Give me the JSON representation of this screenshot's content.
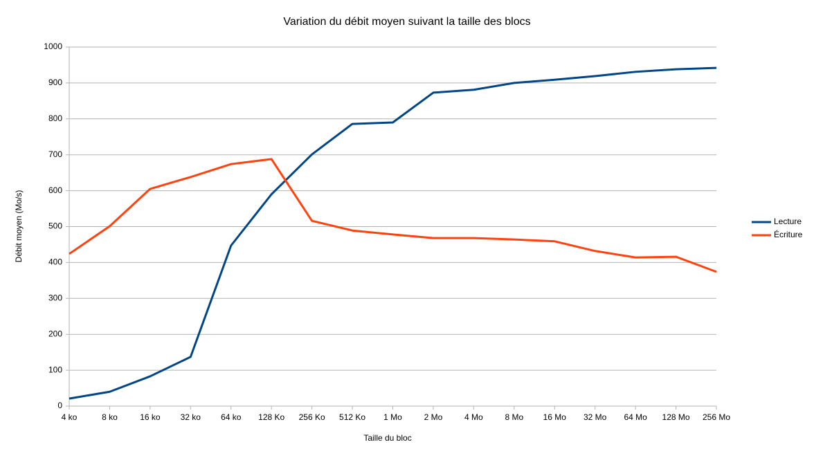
{
  "chart_data": {
    "type": "line",
    "title": "Variation du débit moyen suivant la taille des blocs",
    "x_label": "Taille du bloc",
    "y_label": "Débit moyen (Mo/s)",
    "categories": [
      "4 ko",
      "8 ko",
      "16 ko",
      "32 ko",
      "64 ko",
      "128 Ko",
      "256 Ko",
      "512 Ko",
      "1 Mo",
      "2 Mo",
      "4 Mo",
      "8 Mo",
      "16 Mo",
      "32 Mo",
      "64 Mo",
      "128 Mo",
      "256 Mo"
    ],
    "series": [
      {
        "name": "Lecture",
        "color": "#004586",
        "values": [
          21,
          40,
          83,
          137,
          447,
          590,
          701,
          786,
          790,
          873,
          881,
          900,
          909,
          919,
          931,
          938,
          942
        ]
      },
      {
        "name": "Écriture",
        "color": "#ff420e",
        "values": [
          424,
          501,
          605,
          638,
          674,
          688,
          516,
          489,
          478,
          468,
          468,
          464,
          459,
          432,
          414,
          416,
          374
        ]
      }
    ],
    "ylim": [
      0,
      1000
    ],
    "yticks": [
      0,
      100,
      200,
      300,
      400,
      500,
      600,
      700,
      800,
      900,
      1000
    ],
    "grid": true,
    "legend": "right"
  }
}
